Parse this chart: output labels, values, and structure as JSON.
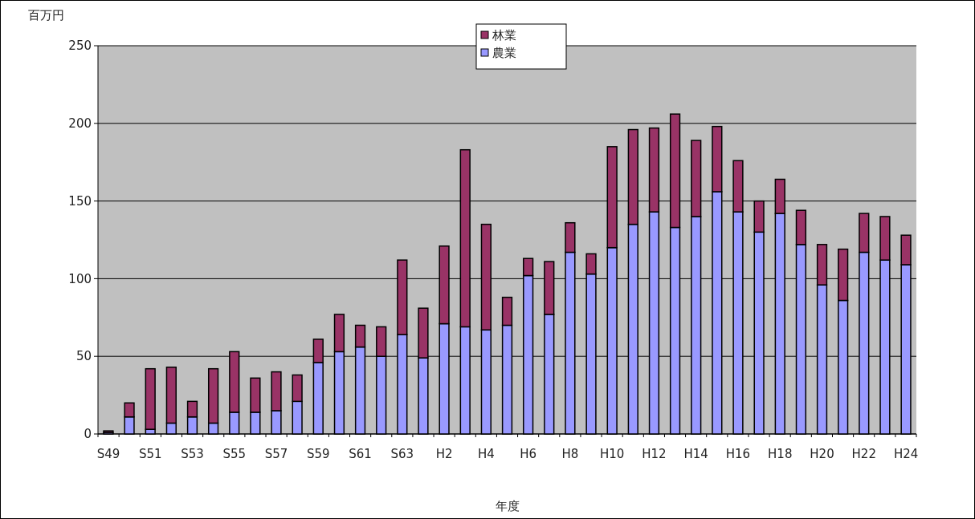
{
  "chart_data": {
    "type": "bar",
    "stacked": true,
    "xlabel": "年度",
    "ylabel": "百万円",
    "categories": [
      "S49",
      null,
      "S51",
      null,
      "S53",
      null,
      "S55",
      null,
      "S57",
      null,
      "S59",
      null,
      "S61",
      null,
      "S63",
      null,
      "H2",
      null,
      "H4",
      null,
      "H6",
      null,
      "H8",
      null,
      "H10",
      null,
      "H12",
      null,
      "H14",
      null,
      "H16",
      null,
      "H18",
      null,
      "H20",
      null,
      "H22",
      null,
      "H24"
    ],
    "series": [
      {
        "name": "農業",
        "color": "#9999ff",
        "values": [
          1,
          11,
          3,
          7,
          11,
          7,
          14,
          14,
          15,
          21,
          46,
          53,
          56,
          50,
          64,
          49,
          71,
          69,
          67,
          70,
          102,
          77,
          117,
          103,
          120,
          135,
          143,
          133,
          140,
          156,
          143,
          130,
          142,
          122,
          96,
          86,
          117,
          112,
          109
        ]
      },
      {
        "name": "林業",
        "color": "#993366",
        "values": [
          1,
          9,
          39,
          36,
          10,
          35,
          39,
          22,
          25,
          17,
          15,
          24,
          14,
          19,
          48,
          32,
          50,
          114,
          68,
          18,
          11,
          34,
          19,
          13,
          65,
          61,
          54,
          73,
          49,
          42,
          33,
          20,
          22,
          22,
          26,
          33,
          25,
          28,
          19
        ]
      }
    ],
    "ylim": [
      0,
      250
    ],
    "yticks": [
      0,
      50,
      100,
      150,
      200,
      250
    ],
    "grid": "y",
    "legend": "top"
  }
}
